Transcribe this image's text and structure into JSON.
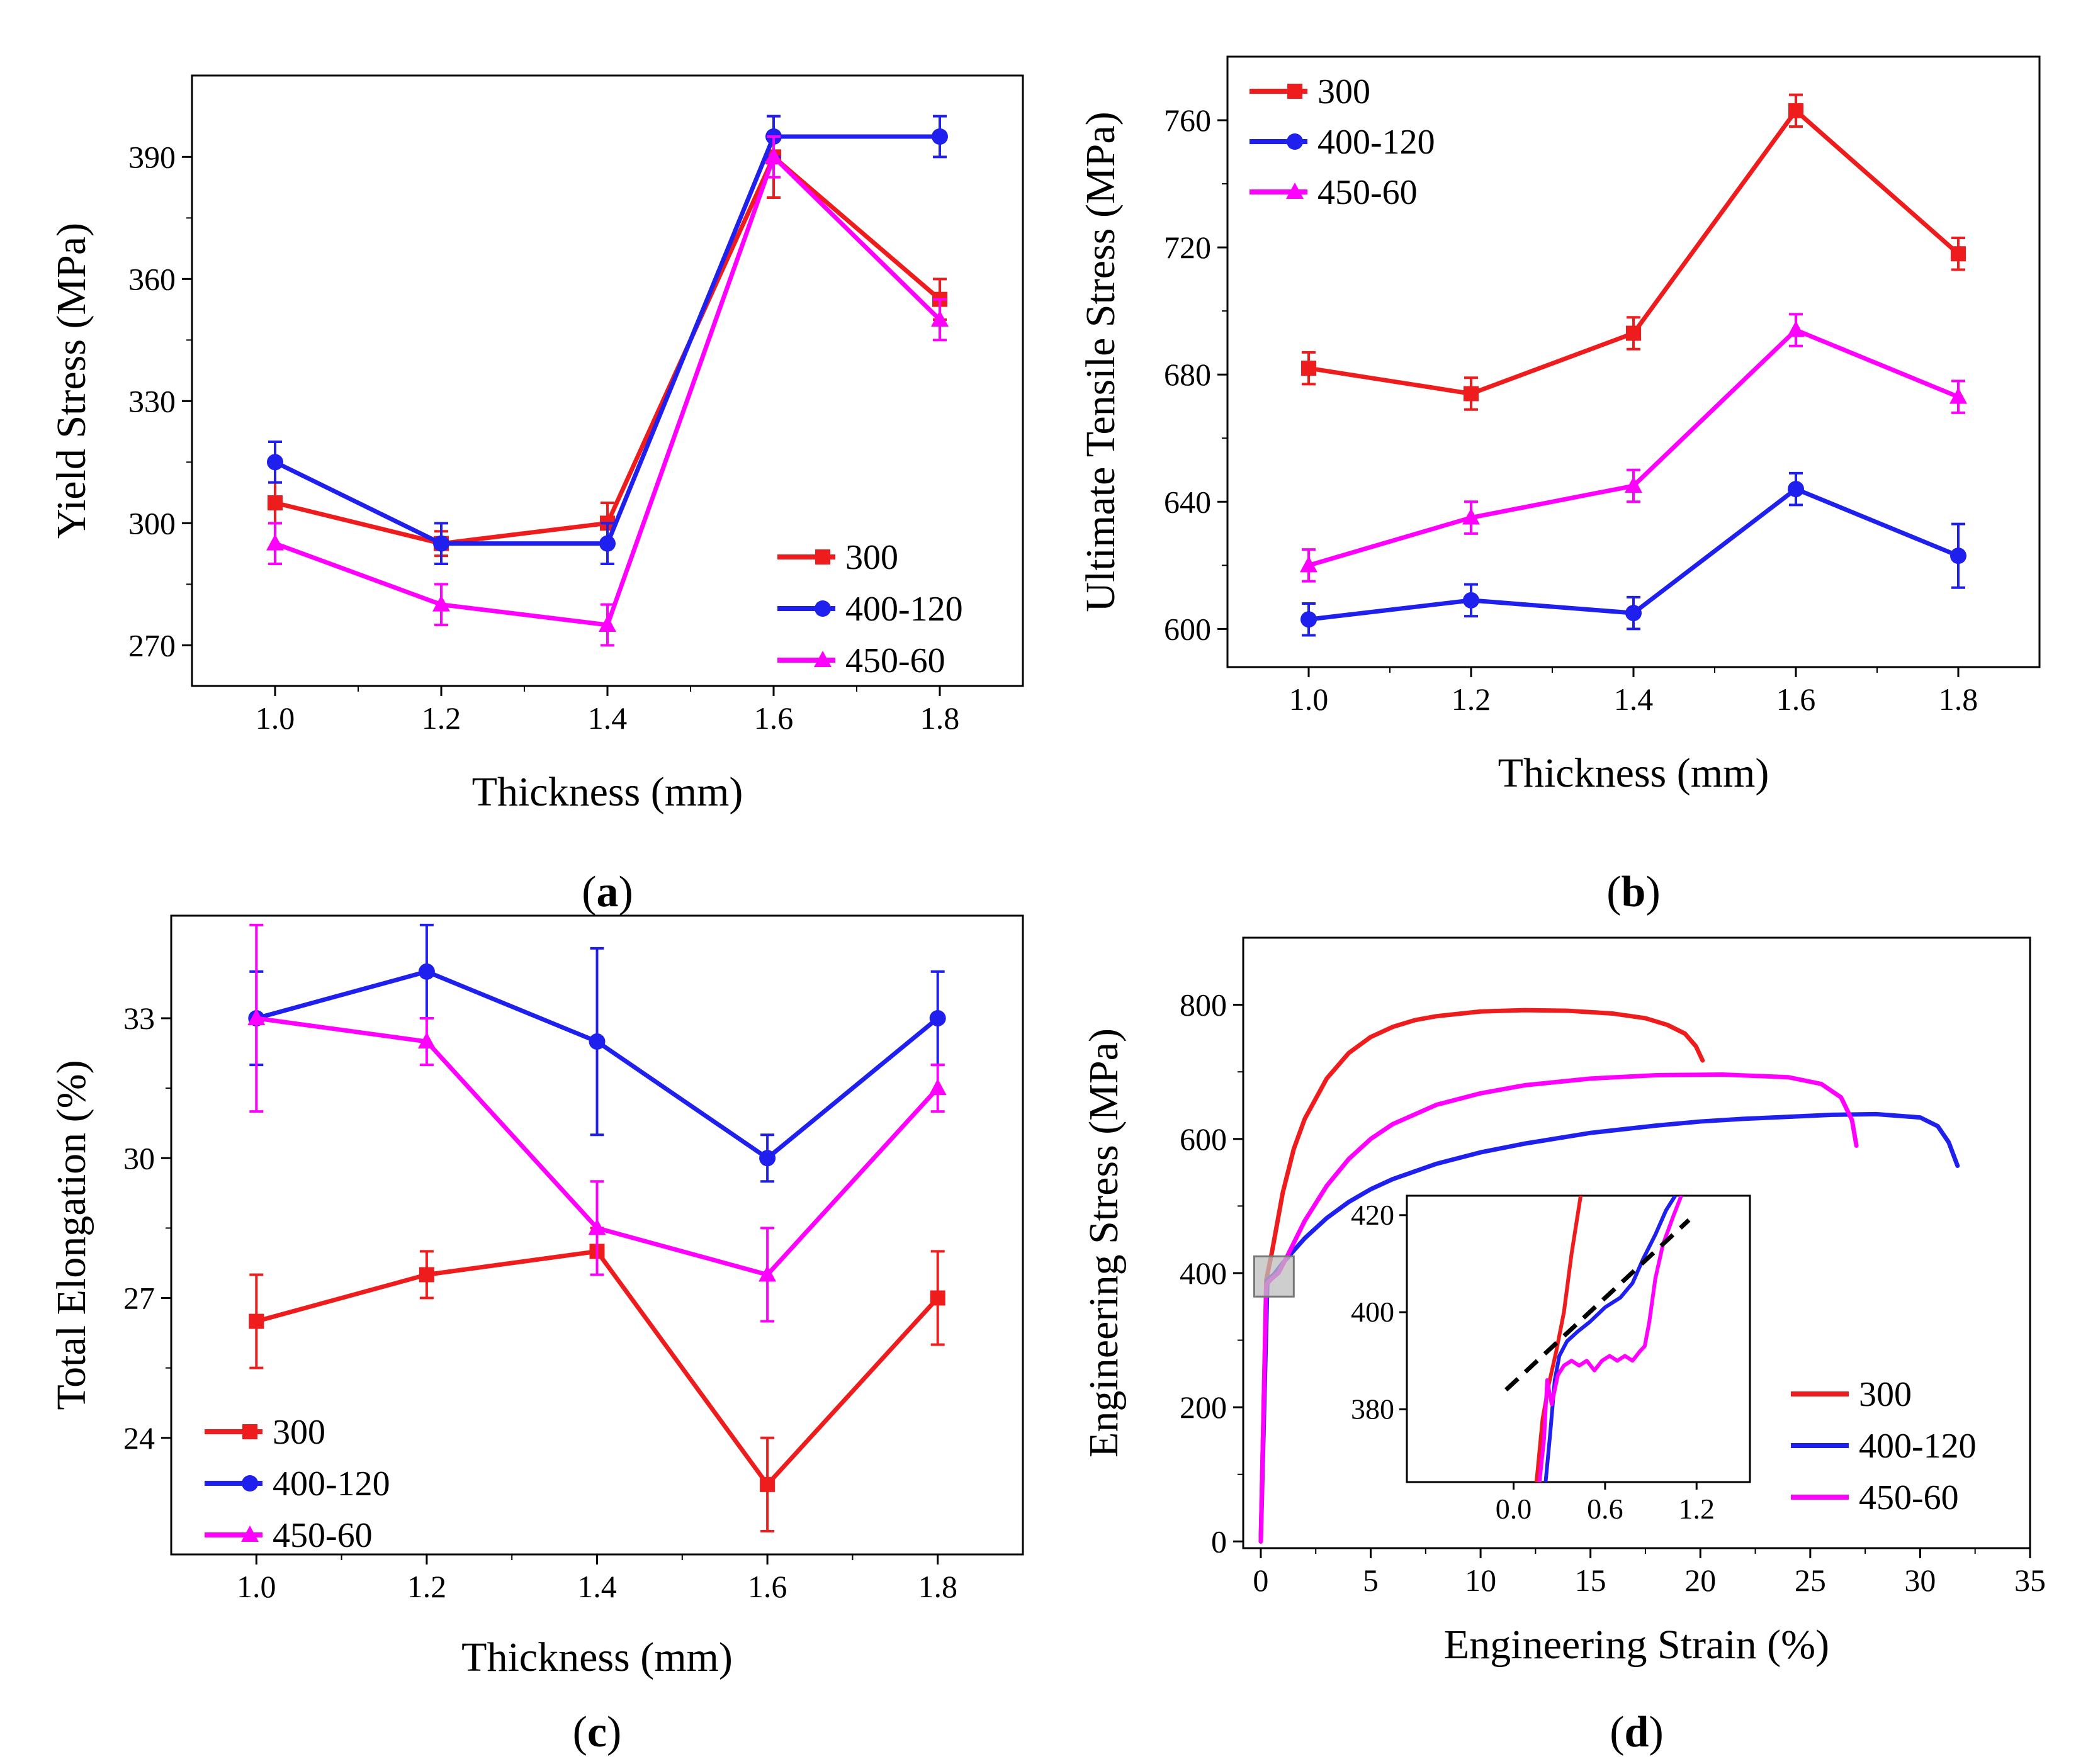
{
  "colors": {
    "s300": "#ee1c1c",
    "s400": "#1f1fee",
    "s450": "#ff00ff",
    "axis": "#000000"
  },
  "chart_data": [
    {
      "id": "a",
      "panel_label": "a",
      "type": "line",
      "title": "",
      "xlabel": "Thickness (mm)",
      "ylabel": "Yield Stress (MPa)",
      "xlim": [
        0.9,
        1.9
      ],
      "ylim": [
        260,
        410
      ],
      "x_ticks": [
        1.0,
        1.2,
        1.4,
        1.6,
        1.8
      ],
      "y_ticks": [
        270,
        300,
        330,
        360,
        390
      ],
      "x_tick_labels": [
        "1.0",
        "1.2",
        "1.4",
        "1.6",
        "1.8"
      ],
      "y_tick_labels": [
        "270",
        "300",
        "330",
        "360",
        "390"
      ],
      "x": [
        1.0,
        1.2,
        1.4,
        1.6,
        1.8
      ],
      "legend_position": "bottom-right",
      "series": [
        {
          "name": "300",
          "color_key": "s300",
          "marker": "square",
          "values": [
            305,
            295,
            300,
            390,
            355
          ],
          "errors": [
            5,
            3,
            5,
            10,
            5
          ]
        },
        {
          "name": "400-120",
          "color_key": "s400",
          "marker": "circle",
          "values": [
            315,
            295,
            295,
            395,
            395
          ],
          "errors": [
            5,
            5,
            5,
            5,
            5
          ]
        },
        {
          "name": "450-60",
          "color_key": "s450",
          "marker": "triangle",
          "values": [
            295,
            280,
            275,
            390,
            350
          ],
          "errors": [
            5,
            5,
            5,
            5,
            5
          ]
        }
      ]
    },
    {
      "id": "b",
      "panel_label": "b",
      "type": "line",
      "title": "",
      "xlabel": "Thickness (mm)",
      "ylabel": "Ultimate Tensile Stress (MPa)",
      "xlim": [
        0.9,
        1.9
      ],
      "ylim": [
        588,
        780
      ],
      "x_ticks": [
        1.0,
        1.2,
        1.4,
        1.6,
        1.8
      ],
      "y_ticks": [
        600,
        640,
        680,
        720,
        760
      ],
      "x_tick_labels": [
        "1.0",
        "1.2",
        "1.4",
        "1.6",
        "1.8"
      ],
      "y_tick_labels": [
        "600",
        "640",
        "680",
        "720",
        "760"
      ],
      "x": [
        1.0,
        1.2,
        1.4,
        1.6,
        1.8
      ],
      "legend_position": "top-left",
      "series": [
        {
          "name": "300",
          "color_key": "s300",
          "marker": "square",
          "values": [
            682,
            674,
            693,
            763,
            718
          ],
          "errors": [
            5,
            5,
            5,
            5,
            5
          ]
        },
        {
          "name": "400-120",
          "color_key": "s400",
          "marker": "circle",
          "values": [
            603,
            609,
            605,
            644,
            623
          ],
          "errors": [
            5,
            5,
            5,
            5,
            10
          ]
        },
        {
          "name": "450-60",
          "color_key": "s450",
          "marker": "triangle",
          "values": [
            620,
            635,
            645,
            694,
            673
          ],
          "errors": [
            5,
            5,
            5,
            5,
            5
          ]
        }
      ]
    },
    {
      "id": "c",
      "panel_label": "c",
      "type": "line",
      "title": "",
      "xlabel": "Thickness (mm)",
      "ylabel": "Total Elongation (%)",
      "xlim": [
        0.9,
        1.9
      ],
      "ylim": [
        21.5,
        35.2
      ],
      "x_ticks": [
        1.0,
        1.2,
        1.4,
        1.6,
        1.8
      ],
      "y_ticks": [
        24,
        27,
        30,
        33
      ],
      "x_tick_labels": [
        "1.0",
        "1.2",
        "1.4",
        "1.6",
        "1.8"
      ],
      "y_tick_labels": [
        "24",
        "27",
        "30",
        "33"
      ],
      "x": [
        1.0,
        1.2,
        1.4,
        1.6,
        1.8
      ],
      "legend_position": "bottom-left",
      "series": [
        {
          "name": "300",
          "color_key": "s300",
          "marker": "square",
          "values": [
            26.5,
            27.5,
            28.0,
            23.0,
            27.0
          ],
          "errors": [
            1.0,
            0.5,
            0.5,
            1.0,
            1.0
          ]
        },
        {
          "name": "400-120",
          "color_key": "s400",
          "marker": "circle",
          "values": [
            33.0,
            34.0,
            32.5,
            30.0,
            33.0
          ],
          "errors": [
            1.0,
            1.0,
            2.0,
            0.5,
            1.0
          ]
        },
        {
          "name": "450-60",
          "color_key": "s450",
          "marker": "triangle",
          "values": [
            33.0,
            32.5,
            28.5,
            27.5,
            31.5
          ],
          "errors": [
            2.0,
            0.5,
            1.0,
            1.0,
            0.5
          ]
        }
      ]
    },
    {
      "id": "d",
      "panel_label": "d",
      "type": "line",
      "title": "",
      "xlabel": "Engineering Strain (%)",
      "ylabel": "Engineering Stress (MPa)",
      "xlim": [
        -0.8,
        35
      ],
      "ylim": [
        -10,
        900
      ],
      "x_ticks": [
        0,
        5,
        10,
        15,
        20,
        25,
        30,
        35
      ],
      "y_ticks": [
        0,
        200,
        400,
        600,
        800
      ],
      "x_tick_labels": [
        "0",
        "5",
        "10",
        "15",
        "20",
        "25",
        "30",
        "35"
      ],
      "y_tick_labels": [
        "0",
        "200",
        "400",
        "600",
        "800"
      ],
      "legend_position": "bottom-right",
      "highlight_box": {
        "x": [
          -0.3,
          1.5
        ],
        "y": [
          365,
          425
        ]
      },
      "series": [
        {
          "name": "300",
          "color_key": "s300",
          "x": [
            0,
            0.25,
            0.5,
            1,
            1.5,
            2,
            3,
            4,
            5,
            6,
            7,
            8,
            10,
            12,
            14,
            16,
            17.5,
            18.5,
            19.3,
            19.8,
            20.1
          ],
          "y": [
            0,
            390,
            430,
            520,
            585,
            630,
            690,
            728,
            752,
            767,
            777,
            783,
            790,
            792,
            791,
            787,
            780,
            770,
            757,
            738,
            717
          ]
        },
        {
          "name": "400-120",
          "color_key": "s400",
          "x": [
            0,
            0.3,
            0.6,
            1,
            2,
            3,
            4,
            5,
            6,
            8,
            10,
            12,
            15,
            18,
            20,
            22,
            24,
            26,
            28,
            30,
            30.8,
            31.3,
            31.7
          ],
          "y": [
            0,
            390,
            398,
            415,
            452,
            482,
            506,
            525,
            540,
            563,
            580,
            593,
            609,
            620,
            626,
            630,
            633,
            636,
            637,
            632,
            619,
            595,
            560
          ]
        },
        {
          "name": "450-60",
          "color_key": "s450",
          "x": [
            0,
            0.25,
            0.5,
            0.8,
            1.2,
            2,
            3,
            4,
            5,
            6,
            8,
            10,
            12,
            15,
            18,
            21,
            24,
            25.5,
            26.4,
            26.9,
            27.1
          ],
          "y": [
            0,
            383,
            392,
            400,
            425,
            478,
            530,
            570,
            600,
            622,
            651,
            668,
            680,
            690,
            695,
            696,
            692,
            682,
            662,
            628,
            590
          ]
        }
      ],
      "inset": {
        "xlim": [
          -0.7,
          1.55
        ],
        "ylim": [
          365,
          424
        ],
        "x_ticks": [
          0.0,
          0.6,
          1.2
        ],
        "y_ticks": [
          380,
          400,
          420
        ],
        "x_tick_labels": [
          "0.0",
          "0.6",
          "1.2"
        ],
        "y_tick_labels": [
          "380",
          "400",
          "420"
        ],
        "offset_line": {
          "x": [
            -0.05,
            1.15
          ],
          "y": [
            384,
            419
          ]
        },
        "series": [
          {
            "color_key": "s300",
            "x": [
              0.15,
              0.19,
              0.23,
              0.28,
              0.33,
              0.38,
              0.44
            ],
            "y": [
              365,
              378,
              385,
              392,
              400,
              412,
              424
            ]
          },
          {
            "color_key": "s400",
            "x": [
              0.21,
              0.24,
              0.27,
              0.3,
              0.35,
              0.42,
              0.5,
              0.6,
              0.7,
              0.78,
              0.85,
              0.93,
              1.0,
              1.06
            ],
            "y": [
              365,
              375,
              386,
              391,
              394,
              396,
              398,
              401,
              403,
              406,
              411,
              416,
              421,
              424
            ]
          },
          {
            "color_key": "s450",
            "x": [
              0.17,
              0.2,
              0.22,
              0.25,
              0.29,
              0.33,
              0.38,
              0.43,
              0.48,
              0.53,
              0.58,
              0.63,
              0.68,
              0.73,
              0.78,
              0.83,
              0.86,
              0.89,
              0.93,
              0.98,
              1.05,
              1.1
            ],
            "y": [
              365,
              374,
              386,
              381,
              387,
              389,
              390,
              389,
              390,
              388,
              390,
              391,
              390,
              391,
              390,
              392,
              393,
              398,
              407,
              414,
              420,
              424
            ]
          }
        ]
      }
    }
  ]
}
